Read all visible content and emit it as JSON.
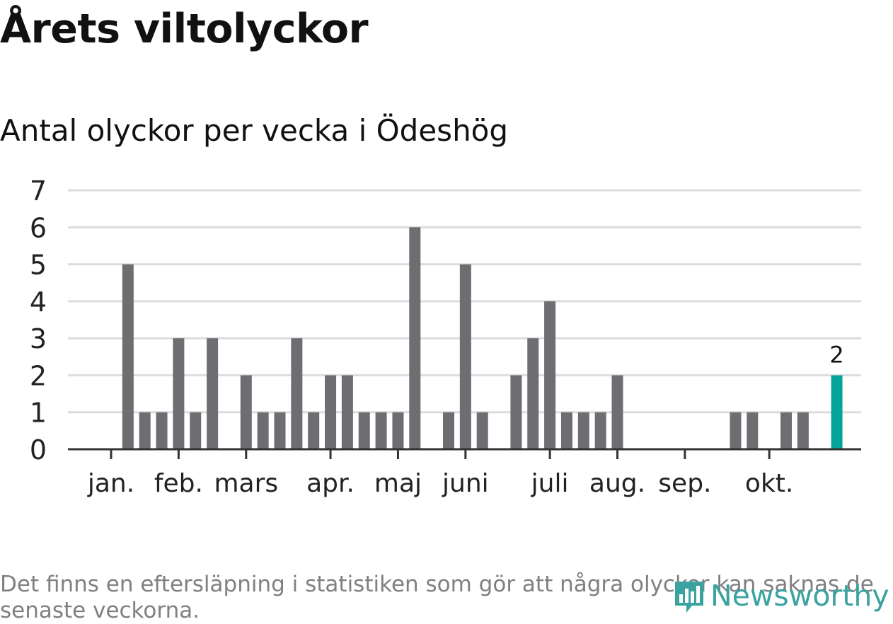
{
  "title": "Årets viltolyckor",
  "subtitle": "Antal olyckor per vecka i Ödeshög",
  "footnote": "Det finns en eftersläpning i statistiken som gör att några olyckor kan saknas de senaste veckorna.",
  "logo_text": "Newsworthy",
  "colors": {
    "bar": "#6e6d72",
    "highlight": "#04a49a",
    "grid": "#dcdcdc",
    "axis": "#333333",
    "logo": "#3aa3a0"
  },
  "chart_data": {
    "type": "bar",
    "title": "Antal olyckor per vecka i Ödeshög",
    "xlabel": "",
    "ylabel": "",
    "ylim": [
      0,
      7
    ],
    "yticks": [
      0,
      1,
      2,
      3,
      4,
      5,
      6,
      7
    ],
    "grid": true,
    "weeks": [
      1,
      2,
      3,
      4,
      5,
      6,
      7,
      8,
      9,
      10,
      11,
      12,
      13,
      14,
      15,
      16,
      17,
      18,
      19,
      20,
      21,
      22,
      23,
      24,
      25,
      26,
      27,
      28,
      29,
      30,
      31,
      32,
      33,
      34,
      35,
      36,
      37,
      38,
      39,
      40,
      41,
      42,
      43,
      44
    ],
    "values": [
      0,
      5,
      1,
      1,
      3,
      1,
      3,
      0,
      2,
      1,
      1,
      3,
      1,
      2,
      2,
      1,
      1,
      1,
      6,
      0,
      1,
      5,
      1,
      0,
      2,
      3,
      4,
      1,
      1,
      1,
      2,
      0,
      0,
      0,
      0,
      0,
      0,
      1,
      1,
      0,
      1,
      1,
      0,
      2
    ],
    "highlight_last": true,
    "highlight_label": "2",
    "month_labels": [
      {
        "label": "jan.",
        "week": 1
      },
      {
        "label": "feb.",
        "week": 5
      },
      {
        "label": "mars",
        "week": 9
      },
      {
        "label": "apr.",
        "week": 14
      },
      {
        "label": "maj",
        "week": 18
      },
      {
        "label": "juni",
        "week": 22
      },
      {
        "label": "juli",
        "week": 27
      },
      {
        "label": "aug.",
        "week": 31
      },
      {
        "label": "sep.",
        "week": 35
      },
      {
        "label": "okt.",
        "week": 40
      }
    ]
  }
}
